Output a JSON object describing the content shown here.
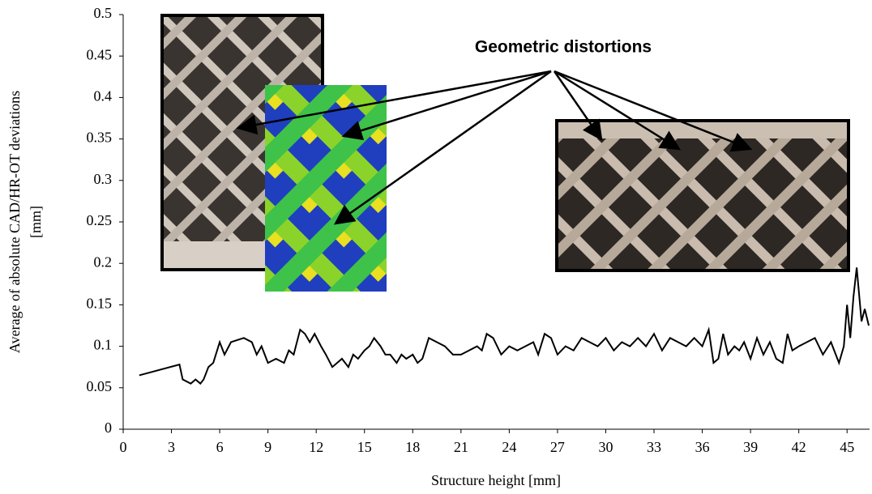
{
  "chart_data": {
    "type": "line",
    "annotation": "Geometric distortions",
    "xlabel": "Structure height [mm]",
    "ylabel": [
      "Average of absolute CAD/HR-OT deviations",
      "[mm]"
    ],
    "xlim": [
      0,
      46.4
    ],
    "xticks": [
      0,
      3,
      6,
      9,
      12,
      15,
      18,
      21,
      24,
      27,
      30,
      33,
      36,
      39,
      42,
      45
    ],
    "ylim": [
      0,
      0.5
    ],
    "yticks": [
      0,
      0.05,
      0.1,
      0.15,
      0.2,
      0.25,
      0.3,
      0.35,
      0.4,
      0.45,
      0.5
    ],
    "series": [
      {
        "color": "#000000",
        "x": [
          1,
          3.5,
          3.7,
          4.2,
          4.5,
          4.8,
          5,
          5.3,
          5.6,
          6,
          6.3,
          6.7,
          7.5,
          8,
          8.3,
          8.6,
          9,
          9.5,
          10,
          10.3,
          10.6,
          11,
          11.3,
          11.6,
          11.9,
          12.3,
          12.6,
          13,
          13.3,
          13.6,
          14,
          14.3,
          14.6,
          15,
          15.3,
          15.6,
          16,
          16.3,
          16.6,
          17,
          17.3,
          17.6,
          18,
          18.3,
          18.6,
          19,
          19.5,
          20,
          20.5,
          21,
          21.5,
          22,
          22.3,
          22.6,
          23,
          23.5,
          24,
          24.5,
          25,
          25.5,
          25.8,
          26.2,
          26.6,
          27,
          27.5,
          28,
          28.5,
          29,
          29.5,
          30,
          30.5,
          31,
          31.5,
          32,
          32.5,
          33,
          33.5,
          34,
          34.5,
          35,
          35.5,
          36,
          36.4,
          36.7,
          37,
          37.3,
          37.6,
          38,
          38.3,
          38.6,
          39,
          39.4,
          39.8,
          40.2,
          40.6,
          41,
          41.3,
          41.6,
          42,
          42.5,
          43,
          43.5,
          44,
          44.5,
          44.8,
          45,
          45.2,
          45.4,
          45.6,
          45.9,
          46.1,
          46.35
        ],
        "values": [
          0.065,
          0.078,
          0.06,
          0.055,
          0.06,
          0.055,
          0.06,
          0.075,
          0.08,
          0.105,
          0.09,
          0.105,
          0.11,
          0.105,
          0.09,
          0.1,
          0.08,
          0.085,
          0.08,
          0.095,
          0.09,
          0.12,
          0.115,
          0.105,
          0.115,
          0.1,
          0.09,
          0.075,
          0.08,
          0.085,
          0.075,
          0.09,
          0.085,
          0.095,
          0.1,
          0.11,
          0.1,
          0.09,
          0.09,
          0.08,
          0.09,
          0.085,
          0.09,
          0.08,
          0.085,
          0.11,
          0.105,
          0.1,
          0.09,
          0.09,
          0.095,
          0.1,
          0.095,
          0.115,
          0.11,
          0.09,
          0.1,
          0.095,
          0.1,
          0.105,
          0.09,
          0.115,
          0.11,
          0.09,
          0.1,
          0.095,
          0.11,
          0.105,
          0.1,
          0.11,
          0.095,
          0.105,
          0.1,
          0.11,
          0.1,
          0.115,
          0.095,
          0.11,
          0.105,
          0.1,
          0.11,
          0.1,
          0.12,
          0.08,
          0.085,
          0.115,
          0.09,
          0.1,
          0.095,
          0.105,
          0.085,
          0.11,
          0.09,
          0.105,
          0.085,
          0.08,
          0.115,
          0.095,
          0.1,
          0.105,
          0.11,
          0.09,
          0.105,
          0.08,
          0.1,
          0.15,
          0.11,
          0.16,
          0.195,
          0.13,
          0.145,
          0.125
        ]
      }
    ]
  }
}
